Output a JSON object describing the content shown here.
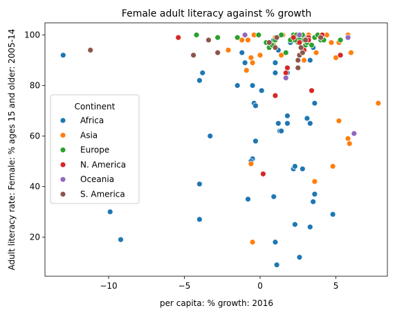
{
  "chart_data": {
    "type": "scatter",
    "title": "Female adult literacy against % growth",
    "xlabel": "per capita: % growth: 2016",
    "ylabel": "Adult literacy rate: Female: % ages 15 and older: 2005-14",
    "xlim": [
      -14.2,
      8.4
    ],
    "ylim": [
      4.5,
      104.8
    ],
    "xticks": [
      -10,
      -5,
      0,
      5
    ],
    "yticks": [
      20,
      40,
      60,
      80,
      100
    ],
    "xtick_labels": [
      "−10",
      "−5",
      "0",
      "5"
    ],
    "ytick_labels": [
      "20",
      "40",
      "60",
      "80",
      "100"
    ],
    "grid": false,
    "legend": {
      "title": "Continent",
      "placement": "center-left"
    },
    "series": [
      {
        "name": "Africa",
        "color": "#1f77b4",
        "points": [
          [
            -13.0,
            92
          ],
          [
            -3.8,
            85
          ],
          [
            -4.0,
            82
          ],
          [
            -1.5,
            80
          ],
          [
            -1.0,
            89
          ],
          [
            -0.5,
            80
          ],
          [
            -0.4,
            73
          ],
          [
            -0.3,
            72
          ],
          [
            0.1,
            78
          ],
          [
            -3.3,
            60
          ],
          [
            1.2,
            65
          ],
          [
            1.3,
            62
          ],
          [
            1.4,
            62
          ],
          [
            1.8,
            68
          ],
          [
            1.8,
            65
          ],
          [
            3.1,
            67
          ],
          [
            3.3,
            65
          ],
          [
            3.6,
            73
          ],
          [
            1.0,
            85
          ],
          [
            1.0,
            89
          ],
          [
            -0.3,
            58
          ],
          [
            -0.5,
            51
          ],
          [
            -0.6,
            50
          ],
          [
            2.2,
            47
          ],
          [
            2.3,
            48
          ],
          [
            2.8,
            47
          ],
          [
            -4.0,
            41
          ],
          [
            -0.8,
            35
          ],
          [
            0.9,
            36
          ],
          [
            3.6,
            37
          ],
          [
            3.5,
            34
          ],
          [
            4.8,
            29
          ],
          [
            -9.9,
            30
          ],
          [
            -4.0,
            27
          ],
          [
            -9.2,
            19
          ],
          [
            1.0,
            18
          ],
          [
            2.3,
            25
          ],
          [
            3.3,
            24
          ],
          [
            2.6,
            12
          ],
          [
            1.1,
            9
          ],
          [
            1.8,
            85
          ],
          [
            1.2,
            94
          ],
          [
            0.9,
            98
          ],
          [
            2.0,
            97
          ],
          [
            2.9,
            99
          ],
          [
            3.0,
            96
          ],
          [
            3.3,
            90
          ],
          [
            3.5,
            95
          ],
          [
            -1.2,
            93
          ]
        ]
      },
      {
        "name": "Asia",
        "color": "#ff7f0e",
        "points": [
          [
            -2.1,
            94
          ],
          [
            -1.2,
            98
          ],
          [
            -0.8,
            98
          ],
          [
            -0.4,
            100
          ],
          [
            0.0,
            92
          ],
          [
            0.6,
            96
          ],
          [
            1.4,
            92
          ],
          [
            1.0,
            99
          ],
          [
            0.9,
            96
          ],
          [
            -0.6,
            91
          ],
          [
            -0.5,
            89
          ],
          [
            -0.9,
            86
          ],
          [
            2.5,
            100
          ],
          [
            3.2,
            100
          ],
          [
            3.7,
            93
          ],
          [
            4.2,
            100
          ],
          [
            4.4,
            100
          ],
          [
            4.7,
            97
          ],
          [
            5.0,
            91
          ],
          [
            5.2,
            97
          ],
          [
            5.8,
            100
          ],
          [
            6.0,
            93
          ],
          [
            5.2,
            66
          ],
          [
            7.8,
            73
          ],
          [
            5.8,
            59
          ],
          [
            5.9,
            57
          ],
          [
            4.8,
            48
          ],
          [
            3.6,
            42
          ],
          [
            -0.6,
            49
          ],
          [
            -0.5,
            18
          ],
          [
            1.5,
            100
          ],
          [
            2.0,
            98
          ],
          [
            2.9,
            90
          ]
        ]
      },
      {
        "name": "Europe",
        "color": "#2ca02c",
        "points": [
          [
            -4.2,
            100
          ],
          [
            -2.8,
            99
          ],
          [
            -1.5,
            99
          ],
          [
            -0.1,
            100
          ],
          [
            0.4,
            97
          ],
          [
            0.6,
            95
          ],
          [
            1.0,
            98
          ],
          [
            1.4,
            100
          ],
          [
            1.7,
            93
          ],
          [
            2.0,
            98
          ],
          [
            2.2,
            100
          ],
          [
            2.4,
            100
          ],
          [
            2.5,
            97
          ],
          [
            2.6,
            99
          ],
          [
            2.8,
            100
          ],
          [
            2.9,
            98
          ],
          [
            3.0,
            96
          ],
          [
            3.1,
            97
          ],
          [
            3.2,
            99
          ],
          [
            3.4,
            96
          ],
          [
            3.6,
            99
          ],
          [
            3.8,
            100
          ],
          [
            4.0,
            98
          ],
          [
            4.2,
            98
          ],
          [
            2.3,
            98
          ],
          [
            5.3,
            98
          ],
          [
            0.8,
            96
          ]
        ]
      },
      {
        "name": "N. America",
        "color": "#d62728",
        "points": [
          [
            -5.4,
            99
          ],
          [
            1.0,
            76
          ],
          [
            0.2,
            45
          ],
          [
            1.7,
            85
          ],
          [
            1.8,
            87
          ],
          [
            2.9,
            94
          ],
          [
            3.2,
            99
          ],
          [
            3.2,
            98
          ],
          [
            3.4,
            78
          ],
          [
            4.1,
            100
          ],
          [
            5.3,
            92
          ],
          [
            2.6,
            97
          ],
          [
            2.2,
            99
          ]
        ]
      },
      {
        "name": "Oceania",
        "color": "#9467bd",
        "points": [
          [
            -1.0,
            100
          ],
          [
            1.7,
            83
          ],
          [
            2.6,
            100
          ],
          [
            5.8,
            99
          ],
          [
            6.2,
            61
          ]
        ]
      },
      {
        "name": "S. America",
        "color": "#8c564b",
        "points": [
          [
            -11.2,
            94
          ],
          [
            -4.4,
            92
          ],
          [
            -3.4,
            98
          ],
          [
            -2.8,
            93
          ],
          [
            0.6,
            97
          ],
          [
            1.0,
            95
          ],
          [
            1.1,
            99
          ],
          [
            2.5,
            87
          ],
          [
            2.5,
            90
          ],
          [
            2.6,
            92
          ],
          [
            2.7,
            95
          ],
          [
            2.8,
            93
          ],
          [
            3.0,
            98
          ],
          [
            4.0,
            99
          ]
        ]
      }
    ]
  }
}
